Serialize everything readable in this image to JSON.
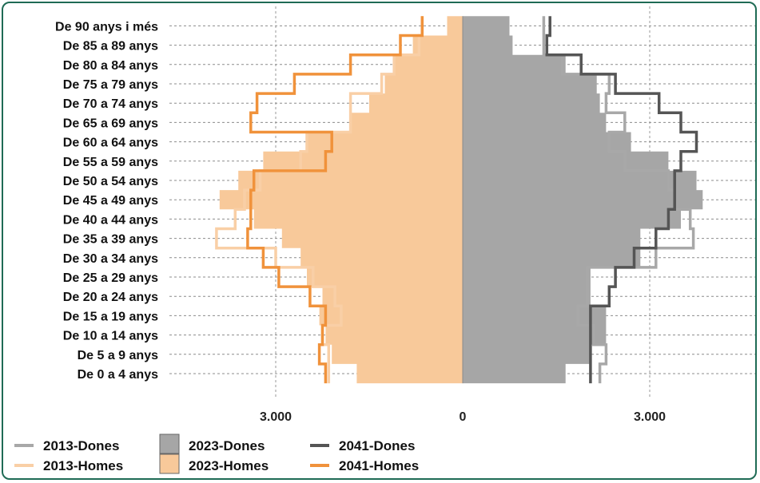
{
  "chart_data": {
    "type": "population-pyramid",
    "categories": [
      "De 0 a 4 anys",
      "De 5 a 9 anys",
      "De 10 a 14 anys",
      "De 15 a 19 anys",
      "De 20 a 24 anys",
      "De 25 a 29 anys",
      "De 30 a 34 anys",
      "De 35 a 39 anys",
      "De 40 a 44 anys",
      "De 45 a 49 anys",
      "De 50 a 54 anys",
      "De 55 a 59 anys",
      "De 60 a 64 anys",
      "De 65 a 69 anys",
      "De 70 a 74 anys",
      "De 75 a 79 anys",
      "De 80 a 84 anys",
      "De 85 a 89 anys",
      "De 90 anys i més"
    ],
    "x_ticks": [
      {
        "value": -3000,
        "label": "3.000"
      },
      {
        "value": 0,
        "label": "0"
      },
      {
        "value": 3000,
        "label": "3.000"
      }
    ],
    "xlim": [
      -4700,
      4700
    ],
    "series": [
      {
        "name": "2023-Dones",
        "kind": "area",
        "side": "right",
        "color": "#a6a6a6",
        "values": [
          1650,
          2050,
          2300,
          2300,
          2050,
          2050,
          2850,
          2850,
          3500,
          3850,
          3750,
          3300,
          2700,
          2300,
          2200,
          2150,
          1650,
          800,
          750
        ]
      },
      {
        "name": "2023-Homes",
        "kind": "area",
        "side": "left",
        "color": "#f8c99a",
        "values": [
          1700,
          2100,
          2200,
          2300,
          2250,
          2500,
          2600,
          2900,
          3350,
          3900,
          3600,
          3200,
          2500,
          1800,
          1500,
          1250,
          1100,
          800,
          250
        ]
      },
      {
        "name": "2013-Dones",
        "kind": "step",
        "side": "right",
        "color": "#a8a8a8",
        "values": [
          2200,
          2300,
          2100,
          1850,
          2000,
          2000,
          3100,
          3700,
          3650,
          3400,
          3300,
          2600,
          2350,
          2600,
          2300,
          2350,
          1600,
          1300,
          1300
        ]
      },
      {
        "name": "2013-Homes",
        "kind": "step",
        "side": "left",
        "color": "#f9cfa6",
        "values": [
          2150,
          2150,
          2250,
          1950,
          2050,
          2400,
          3000,
          3950,
          3650,
          3500,
          3250,
          2600,
          2500,
          1800,
          1800,
          1300,
          1100,
          700,
          650
        ]
      },
      {
        "name": "2041-Dones",
        "kind": "step",
        "side": "right",
        "color": "#555555",
        "values": [
          2050,
          2050,
          2050,
          2050,
          2350,
          2450,
          2750,
          3100,
          3300,
          3400,
          3400,
          3500,
          3750,
          3500,
          3150,
          2450,
          1900,
          1350,
          1400
        ]
      },
      {
        "name": "2041-Homes",
        "kind": "step",
        "side": "left",
        "color": "#f0923b",
        "values": [
          2200,
          2300,
          2250,
          2200,
          2450,
          2950,
          3200,
          3450,
          3400,
          3400,
          3350,
          2200,
          2100,
          3400,
          3300,
          2700,
          1800,
          1000,
          650
        ]
      }
    ],
    "legend": [
      "2013-Dones",
      "2023-Dones",
      "2041-Dones",
      "2013-Homes",
      "2023-Homes",
      "2041-Homes"
    ],
    "legend_position": "bottom-left",
    "grid": true
  }
}
